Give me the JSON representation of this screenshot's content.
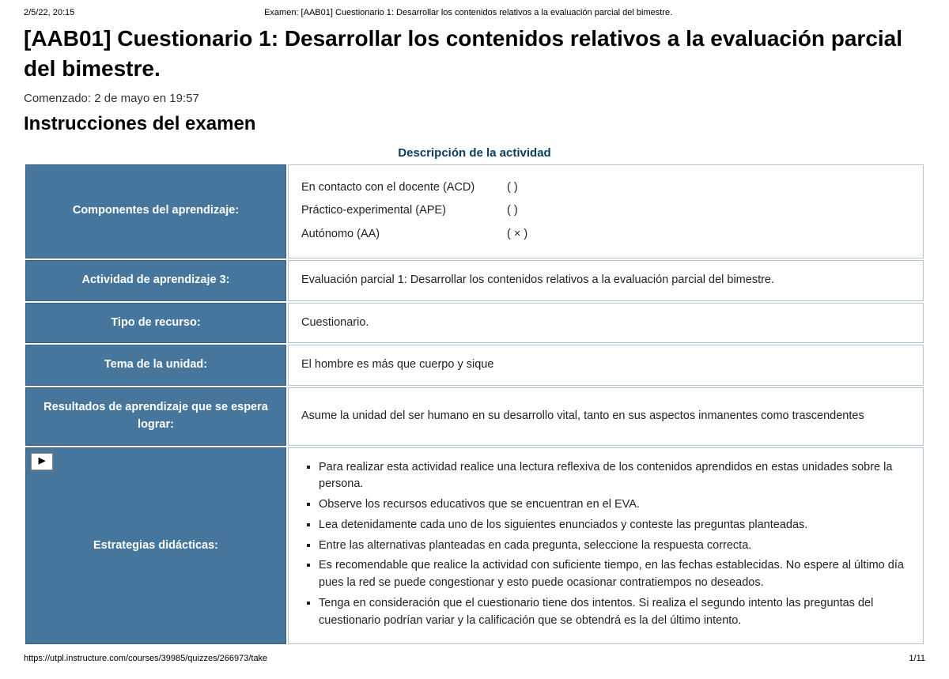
{
  "print": {
    "datetime": "2/5/22, 20:15",
    "header_title": "Examen: [AAB01] Cuestionario 1: Desarrollar los contenidos relativos a la evaluación parcial del bimestre.",
    "footer_url": "https://utpl.instructure.com/courses/39985/quizzes/266973/take",
    "page_indicator": "1/11"
  },
  "page": {
    "title": "[AAB01] Cuestionario 1: Desarrollar los contenidos relativos a la evaluación parcial del bimestre.",
    "started_label": "Comenzado: 2 de mayo en 19:57",
    "instructions_heading": "Instrucciones del examen",
    "activity_desc_heading": "Descripción de la actividad"
  },
  "rows": {
    "componentes": {
      "label": "Componentes del aprendizaje:",
      "items": [
        {
          "text": "En contacto con el docente (ACD)",
          "mark": "(      )"
        },
        {
          "text": "Práctico-experimental (APE)",
          "mark": "(      )"
        },
        {
          "text": "Autónomo (AA)",
          "mark": "(  ×  )"
        }
      ]
    },
    "actividad": {
      "label": "Actividad de aprendizaje 3:",
      "value": "Evaluación parcial 1: Desarrollar los contenidos relativos a la evaluación parcial del bimestre."
    },
    "tipo": {
      "label": "Tipo de recurso:",
      "value": "Cuestionario."
    },
    "tema": {
      "label": "Tema de la unidad:",
      "value": "El hombre es más que cuerpo y sique"
    },
    "resultados": {
      "label": "Resultados de aprendizaje que se espera lograr:",
      "value": "Asume la unidad del ser humano en su desarrollo vital, tanto en sus aspectos inmanentes como trascendentes"
    },
    "estrategias": {
      "label": "Estrategias didácticas:",
      "items": [
        "Para realizar esta actividad realice una lectura reflexiva de los contenidos aprendidos en estas unidades sobre la persona.",
        "Observe los recursos educativos que se encuentran en el EVA.",
        "Lea detenidamente cada uno de los siguientes enunciados y conteste las preguntas planteadas.",
        "Entre las alternativas planteadas en cada pregunta, seleccione la respuesta correcta.",
        "Es recomendable que realice la actividad con suficiente tiempo, en las fechas establecidas. No espere al último día pues la red se puede congestionar y esto puede ocasionar contratiempos no deseados.",
        "Tenga en consideración que el cuestionario tiene dos intentos. Si realiza el segundo intento las preguntas del cuestionario podrían variar y la calificación que se obtendrá es la del último intento."
      ]
    }
  },
  "colors": {
    "header_cell_bg": "#46769c",
    "header_cell_text": "#ffffff",
    "value_cell_border": "#b6c5d2",
    "desc_title_color": "#0a3d62"
  }
}
